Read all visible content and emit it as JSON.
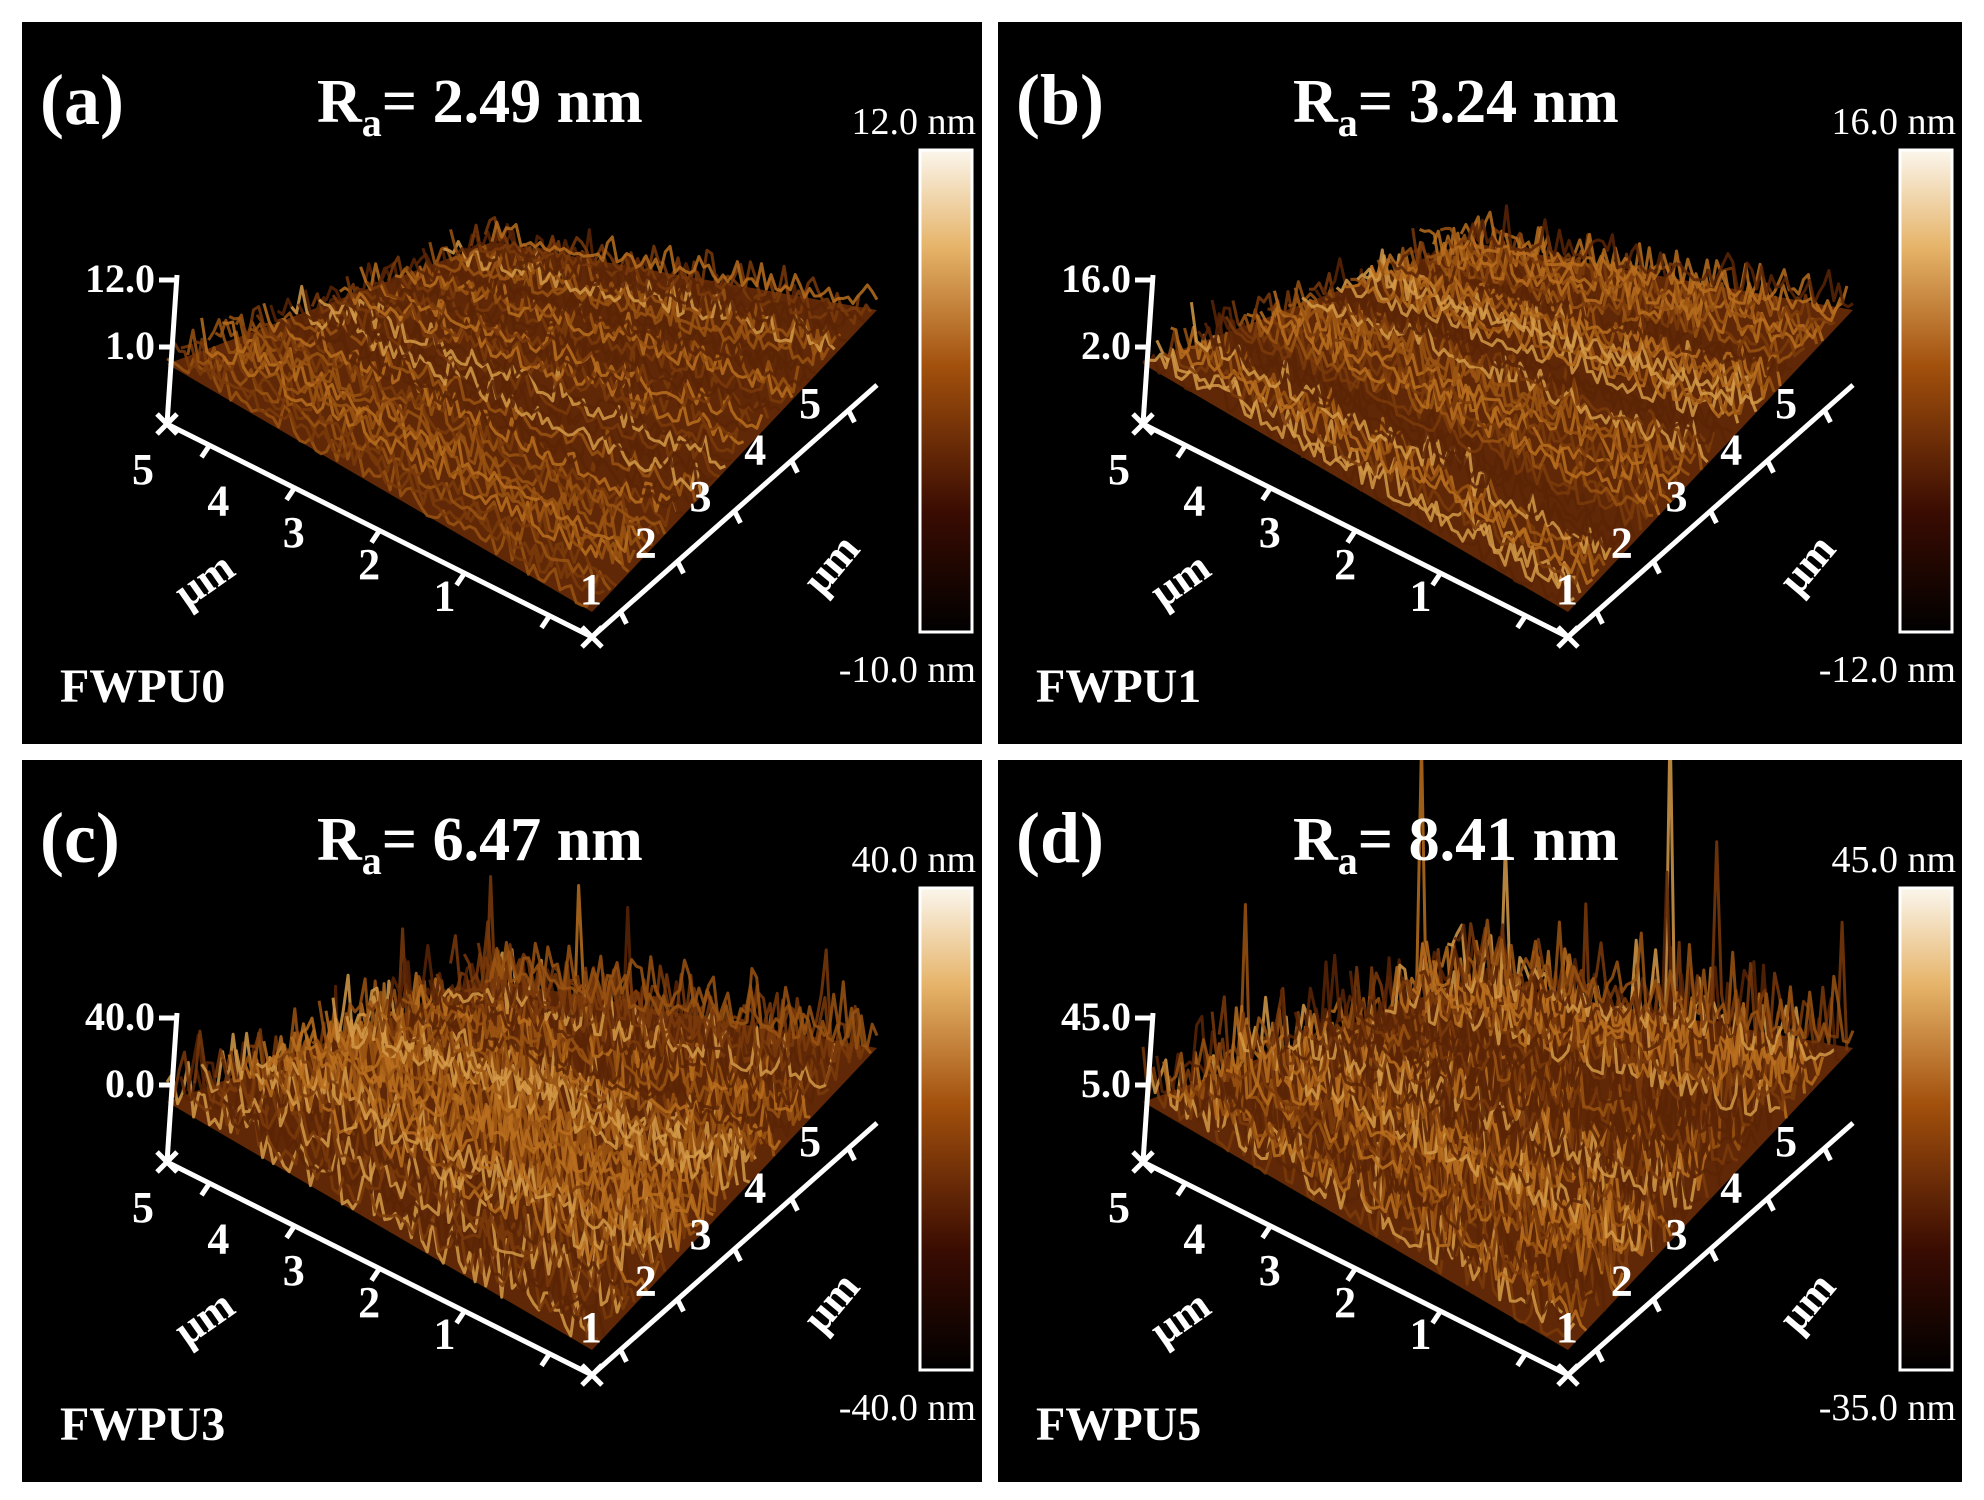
{
  "panels": [
    {
      "letter": "(a)",
      "ra_label": "R",
      "ra_sub": "a",
      "ra_value": "= 2.49 nm",
      "cb_max": "12.0 nm",
      "cb_min": "-10.0 nm",
      "z_ticks": [
        "12.0",
        "1.0"
      ],
      "x_ticks": [
        "5",
        "4",
        "3",
        "2",
        "1"
      ],
      "y_ticks": [
        "1",
        "2",
        "3",
        "4",
        "5"
      ],
      "unit_left": "μm",
      "unit_right": "μm",
      "sample": "FWPU0",
      "roughness": 2.49
    },
    {
      "letter": "(b)",
      "ra_label": "R",
      "ra_sub": "a",
      "ra_value": "= 3.24 nm",
      "cb_max": "16.0 nm",
      "cb_min": "-12.0 nm",
      "z_ticks": [
        "16.0",
        "2.0"
      ],
      "x_ticks": [
        "5",
        "4",
        "3",
        "2",
        "1"
      ],
      "y_ticks": [
        "1",
        "2",
        "3",
        "4",
        "5"
      ],
      "unit_left": "μm",
      "unit_right": "μm",
      "sample": "FWPU1",
      "roughness": 3.24
    },
    {
      "letter": "(c)",
      "ra_label": "R",
      "ra_sub": "a",
      "ra_value": "= 6.47 nm",
      "cb_max": "40.0 nm",
      "cb_min": "-40.0 nm",
      "z_ticks": [
        "40.0",
        "0.0"
      ],
      "x_ticks": [
        "5",
        "4",
        "3",
        "2",
        "1"
      ],
      "y_ticks": [
        "1",
        "2",
        "3",
        "4",
        "5"
      ],
      "unit_left": "μm",
      "unit_right": "μm",
      "sample": "FWPU3",
      "roughness": 6.47
    },
    {
      "letter": "(d)",
      "ra_label": "R",
      "ra_sub": "a",
      "ra_value": "= 8.41 nm",
      "cb_max": "45.0 nm",
      "cb_min": "-35.0 nm",
      "z_ticks": [
        "45.0",
        "5.0"
      ],
      "x_ticks": [
        "5",
        "4",
        "3",
        "2",
        "1"
      ],
      "y_ticks": [
        "1",
        "2",
        "3",
        "4",
        "5"
      ],
      "unit_left": "μm",
      "unit_right": "μm",
      "sample": "FWPU5",
      "roughness": 8.41
    }
  ],
  "colors": {
    "background": "#000000",
    "axis": "#ffffff",
    "surface_dark": "#2a0f02",
    "surface_mid": "#a25a14",
    "surface_light": "#f5ecd8"
  }
}
